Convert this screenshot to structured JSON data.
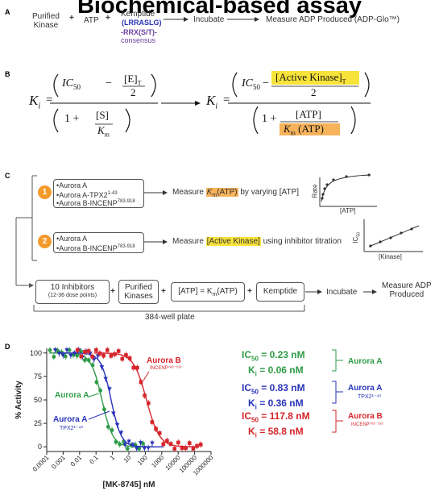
{
  "header": {
    "title": "Biochemical-based assay"
  },
  "panel_a": {
    "label": "A",
    "kinase": "Purified\nKinase",
    "plus1": "+",
    "atp": "ATP",
    "plus2": "+",
    "kemptide": "Kemptide",
    "seq": "(LRRASLG)",
    "consensus_seq": "-RRX(S/T)-",
    "consensus_word": "consensus",
    "incubate": "Incubate",
    "measure": "Measure ADP Produced (ADP-Glo™)"
  },
  "panel_b": {
    "label": "B",
    "k_i": "K",
    "k_sub": "i",
    "eq": "=",
    "ic50": "IC",
    "ic_sub": "50",
    "minus": "−",
    "e_t": "[E]",
    "t_sub": "T",
    "two": "2",
    "one_plus": "1 +",
    "s": "[S]",
    "km": "K",
    "m_sub": "m",
    "active_kinase": "[Active Kinase]",
    "atp": "[ATP]",
    "km_atp": "K",
    "km_atp_suffix": "(ATP)"
  },
  "panel_c": {
    "label": "C",
    "step1_num": "1",
    "step1_items": [
      "•Aurora A",
      "•Aurora A-TPX2",
      "•Aurora B-INCENP"
    ],
    "step1_sup": [
      "",
      "1-43",
      "783-918"
    ],
    "step1_measure_pre": "Measure ",
    "step1_measure_hl": "K",
    "step1_measure_hl_sub": "m",
    "step1_measure_hl_suffix": "(ATP)",
    "step1_measure_post": " by varying [ATP]",
    "step2_num": "2",
    "step2_items": [
      "•Aurora A",
      "•Aurora B-INCENP"
    ],
    "step2_sup": [
      "",
      "783-918"
    ],
    "step2_measure_pre": "Measure ",
    "step2_measure_hl": "[Active Kinase]",
    "step2_measure_post": " using inhibitor titration",
    "graph1_y": "Rate",
    "graph1_x": "[ATP]",
    "graph2_y": "IC",
    "graph2_y_sub": "50",
    "graph2_x": "[Kinase]",
    "inhibitors": "10 Inhibitors",
    "inhibitors_sub": "(12-36 dose points)",
    "purified": "Purified\nKinases",
    "atp_eq": "[ATP] = K",
    "atp_eq_sub": "m",
    "atp_eq_suffix": "(ATP)",
    "kemptide": "Kemptide",
    "incubate": "Incubate",
    "measure": "Measure ADP\nProduced",
    "plate": "384-well plate"
  },
  "panel_d": {
    "label": "D"
  },
  "chart_data": {
    "type": "scatter",
    "xlabel": "[MK-8745] nM",
    "ylabel": "% Activity",
    "xscale": "log",
    "xlim": [
      0.0001,
      1000000
    ],
    "ylim": [
      -5,
      105
    ],
    "x_ticks": [
      "0.0001",
      "0.001",
      "0.01",
      "0.1",
      "1",
      "10",
      "100",
      "1000",
      "10000",
      "100000",
      "1000000"
    ],
    "y_ticks": [
      "0",
      "25",
      "50",
      "75",
      "100"
    ],
    "series": [
      {
        "name": "Aurora A",
        "color": "#2e9b47",
        "marker": "circle",
        "ic50": 0.23,
        "hill": 1.3
      },
      {
        "name": "Aurora A TPX2",
        "sup": "1-43",
        "color": "#2732b8",
        "marker": "triangle-down",
        "ic50": 0.83,
        "hill": 1.4
      },
      {
        "name": "Aurora B",
        "sup": "INCENP783-918",
        "color": "#d6242a",
        "marker": "square",
        "ic50": 117.8,
        "hill": 1.1
      }
    ],
    "annotations": [
      {
        "ic50": "IC",
        "ic50_sub": "50",
        "ic50_val": " = 0.23 nM",
        "ki": "K",
        "ki_sub": "i",
        "ki_val": " = 0.06 nM",
        "label": "Aurora A",
        "label_sup": "",
        "color": "#2e9b47"
      },
      {
        "ic50": "IC",
        "ic50_sub": "50",
        "ic50_val": " = 0.83 nM",
        "ki": "K",
        "ki_sub": "i",
        "ki_val": " = 0.36 nM",
        "label": "Aurora A",
        "label_sup": "TPX2¹⁻⁴³",
        "color": "#2732b8"
      },
      {
        "ic50": "IC",
        "ic50_sub": "50",
        "ic50_val": " = 117.8 nM",
        "ki": "K",
        "ki_sub": "i",
        "ki_val": " =  58.8 nM",
        "label": "Aurora B",
        "label_sup": "INCENP⁷⁸³⁻⁹¹⁸",
        "color": "#d6242a"
      }
    ],
    "curve_labels": [
      {
        "text": "Aurora A",
        "color": "#2e9b47"
      },
      {
        "text": "Aurora A",
        "sub": "TPX2¹⁻⁴³",
        "color": "#2732b8"
      },
      {
        "text": "Aurora B",
        "sub": "INCENP⁷⁸³⁻⁹¹⁸",
        "color": "#d6242a"
      }
    ]
  }
}
